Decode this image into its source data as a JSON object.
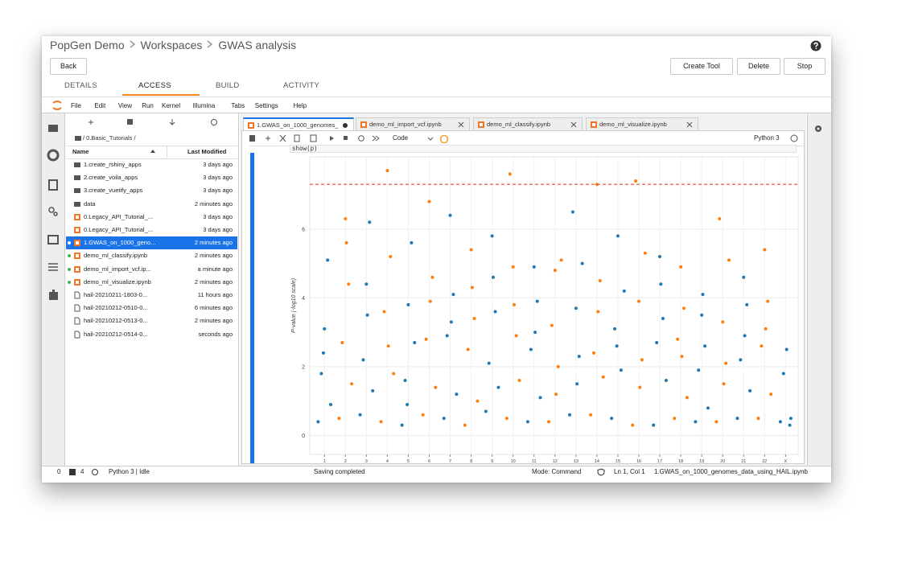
{
  "breadcrumb": [
    "PopGen Demo",
    "Workspaces",
    "GWAS analysis"
  ],
  "buttons": {
    "back": "Back",
    "create_tool": "Create Tool",
    "delete": "Delete",
    "stop": "Stop"
  },
  "tabs": {
    "items": [
      "DETAILS",
      "ACCESS",
      "BUILD",
      "ACTIVITY"
    ],
    "active": 1
  },
  "menu": [
    "File",
    "Edit",
    "View",
    "Run",
    "Kernel",
    "Illumina",
    "Tabs",
    "Settings",
    "Help"
  ],
  "file_browser": {
    "path": "/ 0.Basic_Tutorials /",
    "columns": [
      "Name",
      "Last Modified"
    ],
    "selected": 6,
    "rows": [
      {
        "name": "1.create_rshiny_apps",
        "modified": "3 days ago",
        "icon": "folder",
        "running": false
      },
      {
        "name": "2.create_voila_apps",
        "modified": "3 days ago",
        "icon": "folder",
        "running": false
      },
      {
        "name": "3.create_vuetify_apps",
        "modified": "3 days ago",
        "icon": "folder",
        "running": false
      },
      {
        "name": "data",
        "modified": "2 minutes ago",
        "icon": "folder",
        "running": false
      },
      {
        "name": "0.Legacy_API_Tutorial_...",
        "modified": "3 days ago",
        "icon": "notebook",
        "running": false
      },
      {
        "name": "0.Legacy_API_Tutorial_...",
        "modified": "3 days ago",
        "icon": "notebook",
        "running": false
      },
      {
        "name": "1.GWAS_on_1000_geno...",
        "modified": "2 minutes ago",
        "icon": "notebook",
        "running": true
      },
      {
        "name": "demo_ml_classify.ipynb",
        "modified": "2 minutes ago",
        "icon": "notebook",
        "running": true
      },
      {
        "name": "demo_ml_import_vcf.ip...",
        "modified": "a minute ago",
        "icon": "notebook",
        "running": true
      },
      {
        "name": "demo_ml_visualize.ipynb",
        "modified": "2 minutes ago",
        "icon": "notebook",
        "running": true
      },
      {
        "name": "hail-20210211-1803-0...",
        "modified": "11 hours ago",
        "icon": "file",
        "running": false
      },
      {
        "name": "hail-20210212-0510-0...",
        "modified": "6 minutes ago",
        "icon": "file",
        "running": false
      },
      {
        "name": "hail-20210212-0513-0...",
        "modified": "2 minutes ago",
        "icon": "file",
        "running": false
      },
      {
        "name": "hail-20210212-0514-0...",
        "modified": "seconds ago",
        "icon": "file",
        "running": false
      }
    ]
  },
  "notebook_tabs": {
    "items": [
      "1.GWAS_on_1000_genomes_",
      "demo_ml_import_vcf.ipynb",
      "demo_ml_classify.ipynb",
      "demo_ml_visualize.ipynb"
    ],
    "active": 0
  },
  "toolbar": {
    "cell_type": "Code",
    "kernel": "Python 3"
  },
  "cell_source": "show(p)",
  "chart_data": {
    "type": "scatter",
    "y_label": "P-value (-log10 scale)",
    "xlim": [
      0.3,
      23.6
    ],
    "ylim": [
      -0.55,
      8.1
    ],
    "yticks": [
      0,
      2,
      4,
      6
    ],
    "xticks": [
      1,
      2,
      3,
      4,
      5,
      6,
      7,
      8,
      9,
      10,
      11,
      12,
      13,
      14,
      15,
      16,
      17,
      18,
      19,
      20,
      21,
      22,
      {
        "value": 23,
        "label": "X"
      }
    ],
    "grid": true,
    "threshold": 7.3,
    "threshold_color": "#e8554e",
    "series": [
      {
        "color": "#1f77b4",
        "x": [
          0.7,
          0.85,
          1.0,
          1.15,
          1.3,
          0.95,
          2.7,
          2.85,
          3.0,
          3.15,
          3.3,
          3.05,
          4.7,
          4.85,
          5.0,
          5.15,
          5.3,
          4.95,
          6.7,
          6.85,
          7.0,
          7.15,
          7.3,
          7.05,
          8.7,
          8.85,
          9.0,
          9.15,
          9.3,
          9.05,
          10.7,
          10.85,
          11.0,
          11.15,
          11.3,
          11.05,
          12.7,
          12.85,
          13.0,
          13.15,
          13.3,
          13.05,
          14.7,
          14.85,
          15.0,
          15.15,
          15.3,
          14.95,
          16.7,
          16.85,
          17.0,
          17.15,
          17.3,
          17.05,
          18.7,
          18.85,
          19.0,
          19.15,
          19.3,
          19.05,
          20.7,
          20.85,
          21.0,
          21.15,
          21.3,
          21.05,
          22.75,
          22.9,
          23.05,
          23.2,
          23.25
        ],
        "values": [
          0.4,
          1.8,
          3.1,
          5.1,
          0.9,
          2.4,
          0.6,
          2.2,
          4.4,
          6.2,
          1.3,
          3.5,
          0.3,
          1.6,
          3.8,
          5.6,
          2.7,
          0.9,
          0.5,
          2.9,
          6.4,
          4.1,
          1.2,
          3.3,
          0.7,
          2.1,
          5.8,
          3.6,
          1.4,
          4.6,
          0.4,
          2.5,
          4.9,
          3.9,
          1.1,
          3.0,
          0.6,
          6.5,
          3.7,
          2.3,
          5.0,
          1.5,
          0.5,
          3.1,
          5.8,
          1.9,
          4.2,
          2.6,
          0.3,
          2.7,
          5.2,
          3.4,
          1.6,
          4.4,
          0.4,
          1.9,
          3.5,
          2.6,
          0.8,
          4.1,
          0.5,
          2.2,
          4.6,
          3.8,
          1.3,
          2.9,
          0.4,
          1.8,
          2.5,
          0.3,
          0.5
        ]
      },
      {
        "color": "#ff7f0e",
        "x": [
          1.7,
          1.85,
          2.0,
          2.15,
          2.3,
          2.05,
          3.7,
          3.85,
          4.0,
          4.15,
          4.3,
          4.05,
          5.7,
          5.85,
          6.0,
          6.15,
          6.3,
          6.05,
          7.7,
          7.85,
          8.0,
          8.15,
          8.3,
          8.05,
          9.7,
          9.85,
          10.0,
          10.15,
          10.3,
          10.05,
          11.7,
          11.85,
          12.0,
          12.15,
          12.3,
          12.05,
          13.7,
          13.85,
          14.0,
          14.15,
          14.3,
          14.05,
          15.7,
          15.85,
          16.0,
          16.15,
          16.3,
          16.05,
          17.7,
          17.85,
          18.0,
          18.15,
          18.3,
          18.05,
          19.7,
          19.85,
          20.0,
          20.15,
          20.3,
          20.05,
          21.7,
          21.85,
          22.0,
          22.15,
          22.3,
          22.05
        ],
        "values": [
          0.5,
          2.7,
          6.3,
          4.4,
          1.5,
          5.6,
          0.4,
          3.6,
          7.7,
          5.2,
          1.8,
          2.6,
          0.6,
          2.8,
          6.8,
          4.6,
          1.4,
          3.9,
          0.3,
          2.5,
          5.4,
          3.4,
          1.0,
          4.3,
          0.5,
          7.6,
          4.9,
          2.9,
          1.6,
          3.8,
          0.4,
          3.2,
          4.8,
          2.0,
          5.1,
          1.2,
          0.6,
          2.4,
          7.3,
          4.5,
          1.7,
          3.6,
          0.3,
          7.4,
          3.9,
          2.2,
          5.3,
          1.4,
          0.5,
          2.8,
          4.9,
          3.7,
          1.1,
          2.3,
          0.4,
          6.3,
          3.3,
          2.1,
          5.1,
          1.5,
          0.5,
          2.6,
          5.4,
          3.9,
          1.2,
          3.1
        ]
      }
    ]
  },
  "status_bar": {
    "terminals": 0,
    "kernels": 4,
    "kernel_status": "Python 3 | Idle",
    "message": "Saving completed",
    "mode": "Mode: Command",
    "cursor": "Ln 1, Col 1",
    "file": "1.GWAS_on_1000_genomes_data_using_HAIL.ipynb"
  }
}
